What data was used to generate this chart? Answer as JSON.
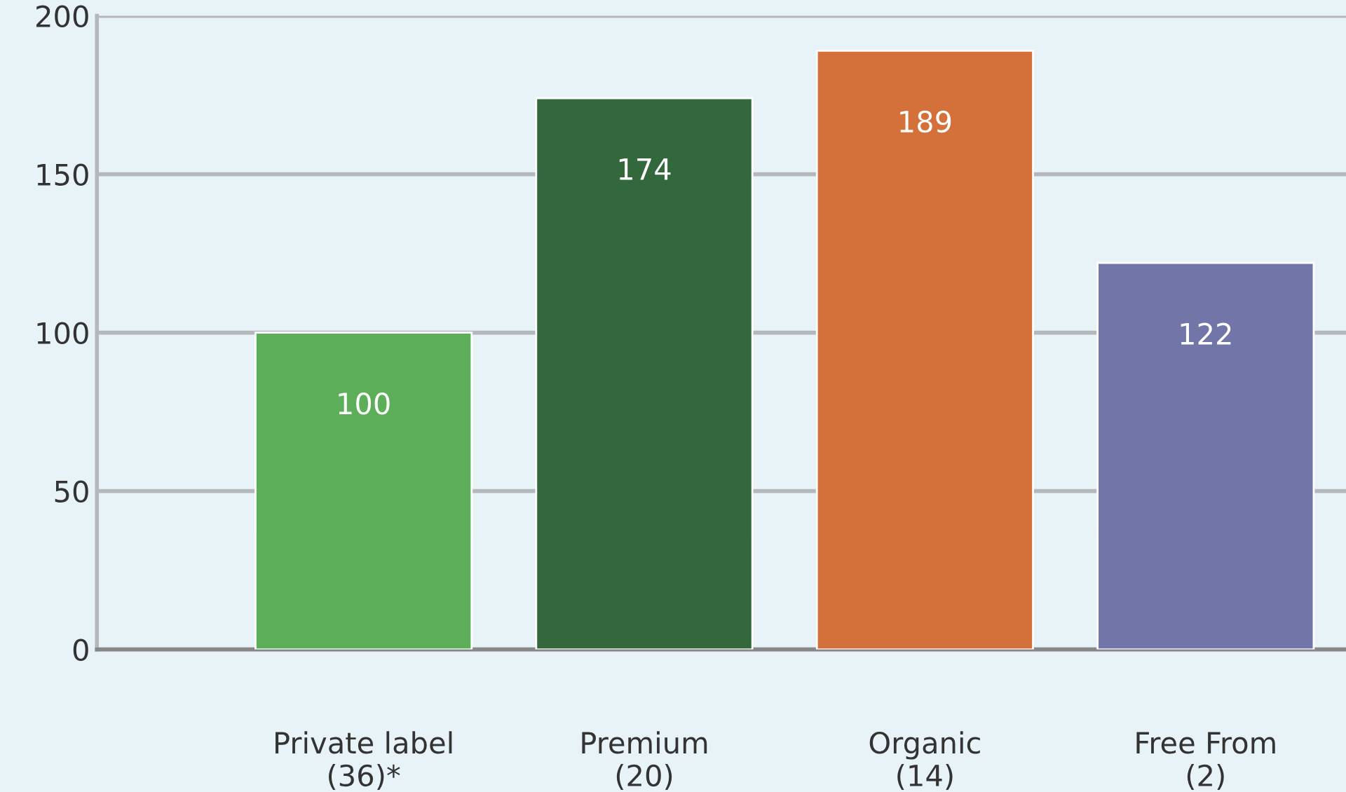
{
  "chart_data": {
    "type": "bar",
    "categories": [
      "Private label\n(36)*",
      "Premium\n(20)",
      "Organic\n(14)",
      "Free From\n(2)"
    ],
    "values": [
      100,
      174,
      189,
      122
    ],
    "colors": [
      "#5dae58",
      "#33683d",
      "#d4703a",
      "#7275a8"
    ],
    "ylim": [
      0,
      200
    ],
    "yticks": [
      0,
      50,
      100,
      150,
      200
    ],
    "grid": "y",
    "data_labels": true
  }
}
